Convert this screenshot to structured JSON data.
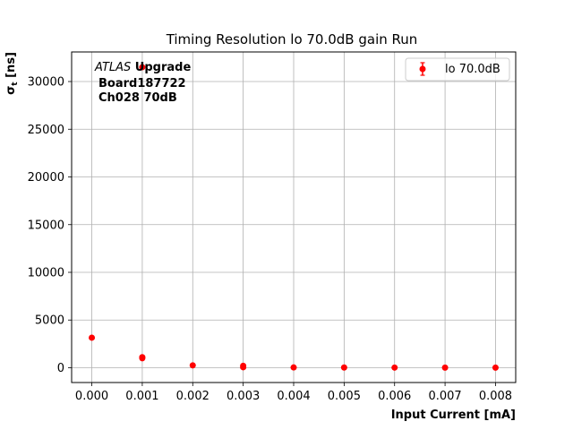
{
  "chart_data": {
    "type": "scatter",
    "title": "Timing Resolution lo 70.0dB gain Run",
    "xlabel": "Input Current [mA]",
    "ylabel_main": "σ",
    "ylabel_sub": "t",
    "ylabel_unit": " [ns]",
    "xlim": [
      -0.0004,
      0.0084
    ],
    "ylim": [
      -1550,
      33100
    ],
    "x_ticks": [
      0.0,
      0.001,
      0.002,
      0.003,
      0.004,
      0.005,
      0.006,
      0.007,
      0.008
    ],
    "x_tick_labels": [
      "0.000",
      "0.001",
      "0.002",
      "0.003",
      "0.004",
      "0.005",
      "0.006",
      "0.007",
      "0.008"
    ],
    "y_ticks": [
      0,
      5000,
      10000,
      15000,
      20000,
      25000,
      30000
    ],
    "y_tick_labels": [
      "0",
      "5000",
      "10000",
      "15000",
      "20000",
      "25000",
      "30000"
    ],
    "grid": true,
    "legend_position": "top-right",
    "series": [
      {
        "name": "lo 70.0dB",
        "color": "#ff0000",
        "marker": "circle-with-errorbar",
        "x": [
          0.0,
          0.001,
          0.001,
          0.001,
          0.002,
          0.003,
          0.003,
          0.004,
          0.005,
          0.006,
          0.007,
          0.008
        ],
        "y": [
          3150,
          31500,
          1100,
          1000,
          250,
          200,
          50,
          30,
          20,
          15,
          10,
          10
        ]
      }
    ],
    "annotation": {
      "line1_italic": "ATLAS",
      "line1_bold": " Upgrade",
      "line2": "Board187722",
      "line3": "Ch028 70dB"
    }
  }
}
